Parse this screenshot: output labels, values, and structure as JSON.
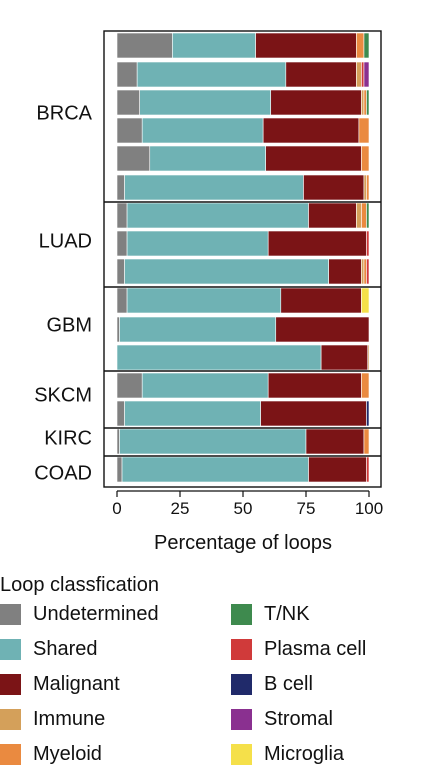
{
  "chart_data": {
    "type": "bar",
    "stacked": true,
    "orientation": "horizontal",
    "xlabel": "Percentage of loops",
    "xlim": [
      0,
      100
    ],
    "xticks": [
      "0",
      "25",
      "50",
      "75",
      "100"
    ],
    "classes": [
      "Undetermined",
      "Shared",
      "Malignant",
      "Immune",
      "Myeloid",
      "T/NK",
      "Plasma cell",
      "B cell",
      "Stromal",
      "Microglia"
    ],
    "colors": {
      "Undetermined": "#808080",
      "Shared": "#6fb2b4",
      "Malignant": "#7b1416",
      "Immune": "#d4a05a",
      "Myeloid": "#ea8a40",
      "T/NK": "#3e8a4e",
      "Plasma cell": "#d03a3a",
      "B cell": "#202a6a",
      "Stromal": "#8a3090",
      "Microglia": "#f5e04a"
    },
    "groups": [
      {
        "label": "BRCA",
        "bars": [
          {
            "Undetermined": 22,
            "Shared": 33,
            "Malignant": 40,
            "Immune": 0,
            "Myeloid": 3,
            "T/NK": 2,
            "Plasma cell": 0,
            "B cell": 0,
            "Stromal": 0,
            "Microglia": 0
          },
          {
            "Undetermined": 8,
            "Shared": 59,
            "Malignant": 28,
            "Immune": 2,
            "Myeloid": 0,
            "T/NK": 0,
            "Plasma cell": 1,
            "B cell": 0,
            "Stromal": 2,
            "Microglia": 0
          },
          {
            "Undetermined": 9,
            "Shared": 52,
            "Malignant": 36,
            "Immune": 1,
            "Myeloid": 1,
            "T/NK": 1,
            "Plasma cell": 0,
            "B cell": 0,
            "Stromal": 0,
            "Microglia": 0
          },
          {
            "Undetermined": 10,
            "Shared": 48,
            "Malignant": 38,
            "Immune": 0,
            "Myeloid": 4,
            "T/NK": 0,
            "Plasma cell": 0,
            "B cell": 0,
            "Stromal": 0,
            "Microglia": 0
          },
          {
            "Undetermined": 13,
            "Shared": 46,
            "Malignant": 38,
            "Immune": 0,
            "Myeloid": 3,
            "T/NK": 0,
            "Plasma cell": 0,
            "B cell": 0,
            "Stromal": 0,
            "Microglia": 0
          },
          {
            "Undetermined": 3,
            "Shared": 71,
            "Malignant": 24,
            "Immune": 1,
            "Myeloid": 1,
            "T/NK": 0,
            "Plasma cell": 0,
            "B cell": 0,
            "Stromal": 0,
            "Microglia": 0
          }
        ]
      },
      {
        "label": "LUAD",
        "bars": [
          {
            "Undetermined": 4,
            "Shared": 72,
            "Malignant": 19,
            "Immune": 2,
            "Myeloid": 2,
            "T/NK": 1,
            "Plasma cell": 0,
            "B cell": 0,
            "Stromal": 0,
            "Microglia": 0
          },
          {
            "Undetermined": 4,
            "Shared": 56,
            "Malignant": 39,
            "Immune": 0,
            "Myeloid": 0,
            "T/NK": 0,
            "Plasma cell": 1,
            "B cell": 0,
            "Stromal": 0,
            "Microglia": 0
          },
          {
            "Undetermined": 3,
            "Shared": 81,
            "Malignant": 13,
            "Immune": 1,
            "Myeloid": 1,
            "T/NK": 0,
            "Plasma cell": 1,
            "B cell": 0,
            "Stromal": 0,
            "Microglia": 0
          }
        ]
      },
      {
        "label": "GBM",
        "bars": [
          {
            "Undetermined": 4,
            "Shared": 61,
            "Malignant": 32,
            "Immune": 0,
            "Myeloid": 0,
            "T/NK": 0,
            "Plasma cell": 0,
            "B cell": 0,
            "Stromal": 0,
            "Microglia": 3
          },
          {
            "Undetermined": 1,
            "Shared": 62,
            "Malignant": 37,
            "Immune": 0,
            "Myeloid": 0,
            "T/NK": 0,
            "Plasma cell": 0,
            "B cell": 0,
            "Stromal": 0,
            "Microglia": 0
          },
          {
            "Undetermined": 0,
            "Shared": 81,
            "Malignant": 18.5,
            "Immune": 0.5,
            "Myeloid": 0,
            "T/NK": 0,
            "Plasma cell": 0,
            "B cell": 0,
            "Stromal": 0,
            "Microglia": 0
          }
        ]
      },
      {
        "label": "SKCM",
        "bars": [
          {
            "Undetermined": 10,
            "Shared": 50,
            "Malignant": 37,
            "Immune": 0,
            "Myeloid": 3,
            "T/NK": 0,
            "Plasma cell": 0,
            "B cell": 0,
            "Stromal": 0,
            "Microglia": 0
          },
          {
            "Undetermined": 3,
            "Shared": 54,
            "Malignant": 42,
            "Immune": 0,
            "Myeloid": 0,
            "T/NK": 0,
            "Plasma cell": 0,
            "B cell": 1,
            "Stromal": 0,
            "Microglia": 0
          }
        ]
      },
      {
        "label": "KIRC",
        "bars": [
          {
            "Undetermined": 1,
            "Shared": 74,
            "Malignant": 23,
            "Immune": 0,
            "Myeloid": 2,
            "T/NK": 0,
            "Plasma cell": 0,
            "B cell": 0,
            "Stromal": 0,
            "Microglia": 0
          }
        ]
      },
      {
        "label": "COAD",
        "bars": [
          {
            "Undetermined": 2,
            "Shared": 74,
            "Malignant": 23,
            "Immune": 0,
            "Myeloid": 0,
            "T/NK": 0,
            "Plasma cell": 1,
            "B cell": 0,
            "Stromal": 0,
            "Microglia": 0
          }
        ]
      }
    ]
  },
  "legend": {
    "title": "Loop classfication",
    "items": [
      {
        "label": "Undetermined",
        "color": "#808080"
      },
      {
        "label": "Shared",
        "color": "#6fb2b4"
      },
      {
        "label": "Malignant",
        "color": "#7b1416"
      },
      {
        "label": "Immune",
        "color": "#d4a05a"
      },
      {
        "label": "Myeloid",
        "color": "#ea8a40"
      },
      {
        "label": "T/NK",
        "color": "#3e8a4e"
      },
      {
        "label": "Plasma cell",
        "color": "#d03a3a"
      },
      {
        "label": "B cell",
        "color": "#202a6a"
      },
      {
        "label": "Stromal",
        "color": "#8a3090"
      },
      {
        "label": "Microglia",
        "color": "#f5e04a"
      }
    ]
  }
}
